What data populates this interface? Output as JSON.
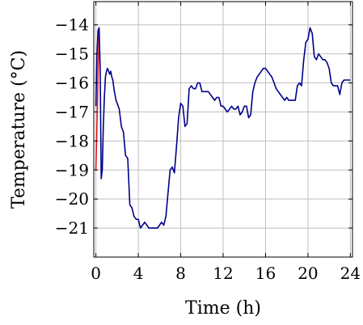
{
  "chart_data": {
    "type": "line",
    "title": "",
    "xlabel": "Time (h)",
    "ylabel": "Temperature (°C)",
    "xlim": [
      -0.2,
      24.2
    ],
    "ylim": [
      -22,
      -13.2
    ],
    "xticks": [
      0,
      4,
      8,
      12,
      16,
      20,
      24
    ],
    "yticks": [
      -21,
      -20,
      -19,
      -18,
      -17,
      -16,
      -15,
      -14
    ],
    "xtick_labels": [
      "0",
      "4",
      "8",
      "12",
      "16",
      "20",
      "24"
    ],
    "ytick_labels": [
      "−21",
      "−20",
      "−19",
      "−18",
      "−17",
      "−16",
      "−15",
      "−14"
    ],
    "grid": true,
    "legend": false,
    "series": [
      {
        "color": "#e41a1c",
        "x": [
          0.0,
          0.1,
          0.2,
          0.3
        ],
        "y": [
          -19.0,
          -17.5,
          -15.8,
          -14.2
        ]
      },
      {
        "color": "#00008b",
        "x": [
          0.0,
          0.1,
          0.2,
          0.3,
          0.4,
          0.5,
          0.6,
          0.7,
          0.8,
          0.9,
          1.0,
          1.1,
          1.2,
          1.3,
          1.4,
          1.5,
          1.6,
          1.7,
          1.8,
          1.9,
          2.0,
          2.2,
          2.4,
          2.6,
          2.8,
          3.0,
          3.2,
          3.4,
          3.6,
          3.8,
          4.0,
          4.2,
          4.4,
          4.6,
          4.8,
          5.0,
          5.2,
          5.4,
          5.6,
          5.8,
          6.0,
          6.2,
          6.4,
          6.6,
          6.8,
          7.0,
          7.2,
          7.4,
          7.6,
          7.8,
          8.0,
          8.2,
          8.4,
          8.6,
          8.8,
          9.0,
          9.2,
          9.4,
          9.6,
          9.8,
          10.0,
          10.2,
          10.4,
          10.6,
          10.8,
          11.0,
          11.2,
          11.4,
          11.6,
          11.8,
          12.0,
          12.2,
          12.4,
          12.6,
          12.8,
          13.0,
          13.2,
          13.4,
          13.6,
          13.8,
          14.0,
          14.2,
          14.4,
          14.6,
          14.8,
          15.0,
          15.2,
          15.4,
          15.6,
          15.8,
          16.0,
          16.2,
          16.4,
          16.6,
          16.8,
          17.0,
          17.2,
          17.4,
          17.6,
          17.8,
          18.0,
          18.2,
          18.4,
          18.6,
          18.8,
          19.0,
          19.2,
          19.4,
          19.6,
          19.8,
          20.0,
          20.2,
          20.4,
          20.6,
          20.8,
          21.0,
          21.2,
          21.4,
          21.6,
          21.8,
          22.0,
          22.2,
          22.4,
          22.6,
          22.8,
          23.0,
          23.2,
          23.4,
          23.6,
          23.8,
          24.0
        ],
        "y": [
          -16.8,
          -15.0,
          -14.2,
          -14.1,
          -15.5,
          -19.3,
          -19.0,
          -17.5,
          -16.5,
          -15.8,
          -15.6,
          -15.5,
          -15.6,
          -15.7,
          -15.6,
          -15.8,
          -15.9,
          -16.2,
          -16.4,
          -16.6,
          -16.7,
          -16.9,
          -17.5,
          -17.7,
          -18.5,
          -18.6,
          -20.2,
          -20.3,
          -20.6,
          -20.7,
          -20.7,
          -21.0,
          -20.9,
          -20.8,
          -20.9,
          -21.0,
          -21.0,
          -21.0,
          -21.0,
          -21.0,
          -20.9,
          -20.8,
          -20.9,
          -20.6,
          -19.8,
          -19.0,
          -18.9,
          -19.1,
          -18.2,
          -17.2,
          -16.7,
          -16.8,
          -17.5,
          -17.4,
          -16.2,
          -16.1,
          -16.2,
          -16.2,
          -16.0,
          -16.0,
          -16.3,
          -16.3,
          -16.3,
          -16.3,
          -16.4,
          -16.5,
          -16.6,
          -16.5,
          -16.5,
          -16.8,
          -16.8,
          -16.9,
          -17.0,
          -16.9,
          -16.8,
          -16.9,
          -16.9,
          -16.8,
          -17.1,
          -17.0,
          -16.8,
          -16.8,
          -17.2,
          -17.1,
          -16.3,
          -16.0,
          -15.8,
          -15.7,
          -15.6,
          -15.5,
          -15.5,
          -15.6,
          -15.7,
          -15.8,
          -16.0,
          -16.2,
          -16.3,
          -16.4,
          -16.5,
          -16.6,
          -16.5,
          -16.6,
          -16.6,
          -16.6,
          -16.6,
          -16.1,
          -16.0,
          -16.1,
          -15.2,
          -14.6,
          -14.5,
          -14.1,
          -14.3,
          -15.1,
          -15.2,
          -15.0,
          -15.1,
          -15.2,
          -15.2,
          -15.3,
          -15.5,
          -16.0,
          -16.1,
          -16.1,
          -16.1,
          -16.4,
          -16.0,
          -15.9,
          -15.9,
          -15.9,
          -15.9
        ]
      }
    ]
  }
}
